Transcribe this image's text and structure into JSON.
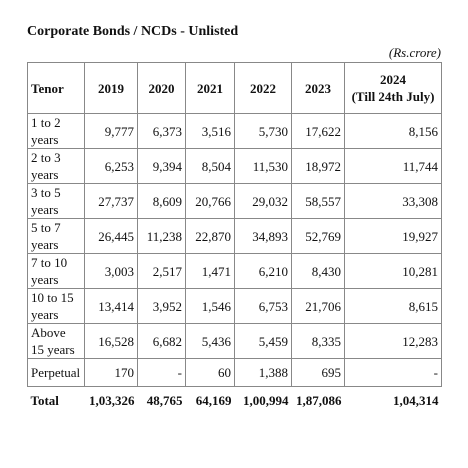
{
  "title": "Corporate Bonds / NCDs - Unlisted",
  "unit": "(Rs.crore)",
  "table": {
    "header_label": "Tenor",
    "years": [
      "2019",
      "2020",
      "2021",
      "2022",
      "2023"
    ],
    "last_year": "2024",
    "last_year_note": "(Till 24th July)",
    "rows": [
      {
        "tenor": "1 to 2 years",
        "values": [
          "9,777",
          "6,373",
          "3,516",
          "5,730",
          "17,622",
          "8,156"
        ]
      },
      {
        "tenor": "2 to 3 years",
        "values": [
          "6,253",
          "9,394",
          "8,504",
          "11,530",
          "18,972",
          "11,744"
        ]
      },
      {
        "tenor": "3 to 5 years",
        "values": [
          "27,737",
          "8,609",
          "20,766",
          "29,032",
          "58,557",
          "33,308"
        ]
      },
      {
        "tenor": "5 to 7 years",
        "values": [
          "26,445",
          "11,238",
          "22,870",
          "34,893",
          "52,769",
          "19,927"
        ]
      },
      {
        "tenor": "7 to 10 years",
        "values": [
          "3,003",
          "2,517",
          "1,471",
          "6,210",
          "8,430",
          "10,281"
        ]
      },
      {
        "tenor": "10 to 15 years",
        "values": [
          "13,414",
          "3,952",
          "1,546",
          "6,753",
          "21,706",
          "8,615"
        ]
      },
      {
        "tenor": "Above 15 years",
        "values": [
          "16,528",
          "6,682",
          "5,436",
          "5,459",
          "8,335",
          "12,283"
        ]
      },
      {
        "tenor": "Perpetual",
        "values": [
          "170",
          "-",
          "60",
          "1,388",
          "695",
          "-"
        ]
      }
    ],
    "total": {
      "label": "Total",
      "values": [
        "1,03,326",
        "48,765",
        "64,169",
        "1,00,994",
        "1,87,086",
        "1,04,314"
      ]
    }
  }
}
